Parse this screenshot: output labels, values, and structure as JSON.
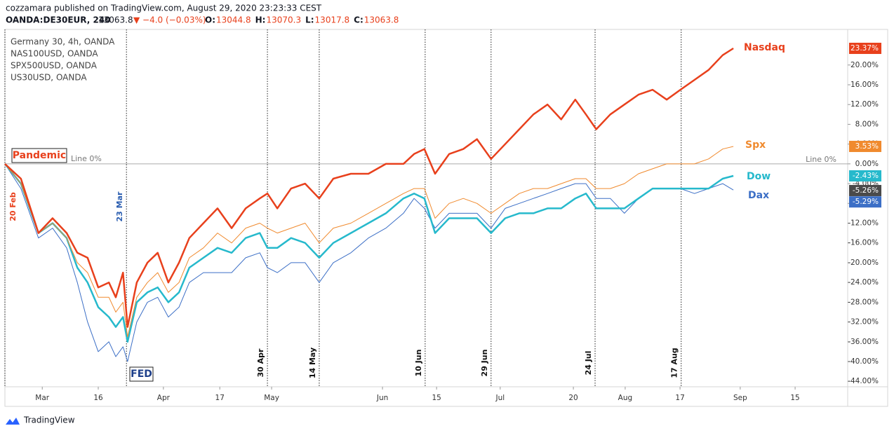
{
  "header": {
    "author_line": "cozzamara published on TradingView.com, August 29, 2020 23:23:33 CEST",
    "symbol": "OANDA:DE30EUR, 240",
    "price": "13063.8",
    "change": "▼ −4.0 (−0.03%)",
    "ohlc": [
      {
        "key": "O:",
        "value": "13044.8"
      },
      {
        "key": "H:",
        "value": "13070.3"
      },
      {
        "key": "L:",
        "value": "13017.8"
      },
      {
        "key": "C:",
        "value": "13063.8"
      }
    ]
  },
  "legend": [
    "Germany 30, 4h, OANDA",
    "NAS100USD, OANDA",
    "SPX500USD, OANDA",
    "US30USD, OANDA"
  ],
  "footer": "TradingView",
  "chart_data": {
    "type": "line",
    "x": [
      51.0,
      55.2,
      59.8,
      63.5,
      67.2,
      70.0,
      72.7,
      75.5,
      78.3,
      80.1,
      82.0,
      83.2,
      85.6,
      88.4,
      91.1,
      93.9,
      96.7,
      99.4,
      103.1,
      106.8,
      110.5,
      114.2,
      117.9,
      119.9,
      122.5,
      126.1,
      129.8,
      133.5,
      137.2,
      141.8,
      146.4,
      151.0,
      155.6,
      158.4,
      161.1,
      163.9,
      167.6,
      171.3,
      174.9,
      178.6,
      182.3,
      186.0,
      189.7,
      193.4,
      197.0,
      200.7,
      203.5,
      206.2,
      209.9,
      213.6,
      217.3,
      221.0,
      224.7,
      228.3,
      232.0,
      235.7,
      239.4,
      242.2
    ],
    "series": [
      {
        "name": "Nasdaq",
        "color": "#e8401c",
        "width": 2.5,
        "last_label": "23.37%",
        "values": [
          0,
          -3,
          -14,
          -11,
          -14,
          -18,
          -19,
          -25,
          -24,
          -27,
          -22,
          -33,
          -24,
          -20,
          -18,
          -24,
          -20,
          -15,
          -12,
          -9,
          -13,
          -9,
          -7,
          -6,
          -9,
          -5,
          -4,
          -7,
          -3,
          -2,
          -2,
          0,
          0,
          2,
          3,
          -2,
          2,
          3,
          5,
          1,
          4,
          7,
          10,
          12,
          9,
          13,
          10,
          7,
          10,
          12,
          14,
          15,
          13,
          15,
          17,
          19,
          22,
          23.37
        ]
      },
      {
        "name": "Spx",
        "color": "#f08a2e",
        "width": 1,
        "last_label": "3.53%",
        "values": [
          0,
          -4,
          -14,
          -12,
          -15,
          -20,
          -22,
          -27,
          -27,
          -30,
          -28,
          -35,
          -27,
          -24,
          -22,
          -26,
          -24,
          -19,
          -17,
          -14,
          -16,
          -13,
          -12,
          -13,
          -14,
          -13,
          -12,
          -16,
          -13,
          -12,
          -10,
          -8,
          -6,
          -5,
          -5,
          -11,
          -8,
          -7,
          -8,
          -10,
          -8,
          -6,
          -5,
          -5,
          -4,
          -3,
          -3,
          -5,
          -5,
          -4,
          -2,
          -1,
          0,
          0,
          0,
          1,
          3,
          3.53
        ]
      },
      {
        "name": "Dow",
        "color": "#26b9cc",
        "width": 2.5,
        "last_label": "-2.43%",
        "values": [
          0,
          -4,
          -14,
          -12,
          -15,
          -21,
          -24,
          -29,
          -31,
          -33,
          -31,
          -36,
          -28,
          -26,
          -25,
          -28,
          -26,
          -21,
          -19,
          -17,
          -18,
          -15,
          -14,
          -17,
          -17,
          -15,
          -16,
          -19,
          -16,
          -14,
          -12,
          -10,
          -7,
          -6,
          -7,
          -14,
          -11,
          -11,
          -11,
          -14,
          -11,
          -10,
          -10,
          -9,
          -9,
          -7,
          -6,
          -9,
          -9,
          -9,
          -7,
          -5,
          -5,
          -5,
          -5,
          -5,
          -3,
          -2.43
        ]
      },
      {
        "name": "Dax",
        "color": "#3c6fc6",
        "width": 1,
        "last_label": "-5.29%",
        "values": [
          0,
          -5,
          -15,
          -13,
          -17,
          -24,
          -32,
          -38,
          -36,
          -39,
          -37,
          -40,
          -32,
          -28,
          -27,
          -31,
          -29,
          -24,
          -22,
          -22,
          -22,
          -19,
          -18,
          -21,
          -22,
          -20,
          -20,
          -24,
          -20,
          -18,
          -15,
          -13,
          -10,
          -7,
          -9,
          -13,
          -10,
          -10,
          -10,
          -13,
          -9,
          -8,
          -7,
          -6,
          -5,
          -4,
          -4,
          -7,
          -7,
          -10,
          -7,
          -5,
          -5,
          -5,
          -6,
          -5,
          -4,
          -5.29
        ]
      }
    ],
    "price_marker": {
      "value": -5.26,
      "label": "-5.26%",
      "color": "#4a4a4a"
    },
    "xlim": [
      51,
      272.2
    ],
    "xticks": [
      {
        "value": 60.8,
        "label": "Mar"
      },
      {
        "value": 75.5,
        "label": "16"
      },
      {
        "value": 92.6,
        "label": "Apr"
      },
      {
        "value": 107.4,
        "label": "17"
      },
      {
        "value": 121.0,
        "label": "May"
      },
      {
        "value": 150.1,
        "label": "Jun"
      },
      {
        "value": 164.3,
        "label": "15"
      },
      {
        "value": 181.0,
        "label": "Jul"
      },
      {
        "value": 200.2,
        "label": "20"
      },
      {
        "value": 213.8,
        "label": "Aug"
      },
      {
        "value": 228.2,
        "label": "17"
      },
      {
        "value": 244.0,
        "label": "Sep"
      },
      {
        "value": 258.4,
        "label": "15"
      }
    ],
    "ylim": [
      -45.1,
      27.2
    ],
    "yticks": [
      {
        "value": 20,
        "label": "20.00%"
      },
      {
        "value": 16,
        "label": "16.00%"
      },
      {
        "value": 12,
        "label": "12.00%"
      },
      {
        "value": 8,
        "label": "8.00%"
      },
      {
        "value": 4,
        "label": "4.00%"
      },
      {
        "value": 0,
        "label": "0.00%"
      },
      {
        "value": -4,
        "label": "-4.00%"
      },
      {
        "value": -8,
        "label": "-8.00%"
      },
      {
        "value": -12,
        "label": "-12.00%"
      },
      {
        "value": -16,
        "label": "-16.00%"
      },
      {
        "value": -20,
        "label": "-20.00%"
      },
      {
        "value": -24,
        "label": "-24.00%"
      },
      {
        "value": -28,
        "label": "-28.00%"
      },
      {
        "value": -32,
        "label": "-32.00%"
      },
      {
        "value": -36,
        "label": "-36.00%"
      },
      {
        "value": -40,
        "label": "-40.00%"
      },
      {
        "value": -44,
        "label": "-44.00%"
      }
    ],
    "zero_line": {
      "value": 0,
      "label": "Line 0%"
    },
    "date_lines": [
      {
        "x": 51.0,
        "label": "20 Feb",
        "color": "#e8401c"
      },
      {
        "x": 82.9,
        "label": "23 Mar",
        "color": "#2a5db0"
      },
      {
        "x": 119.9,
        "label": "30 Apr",
        "color": "#111"
      },
      {
        "x": 133.5,
        "label": "14 May",
        "color": "#111"
      },
      {
        "x": 161.3,
        "label": "10 Jun",
        "color": "#111"
      },
      {
        "x": 178.6,
        "label": "29 Jun",
        "color": "#111"
      },
      {
        "x": 205.9,
        "label": "24 Jul",
        "color": "#111"
      },
      {
        "x": 228.5,
        "label": "17 Aug",
        "color": "#111"
      }
    ],
    "annotations": [
      {
        "label": "Pandemic",
        "color": "#e8401c"
      },
      {
        "label": "FED",
        "color": "#1e3f8a"
      }
    ],
    "grid": false
  }
}
